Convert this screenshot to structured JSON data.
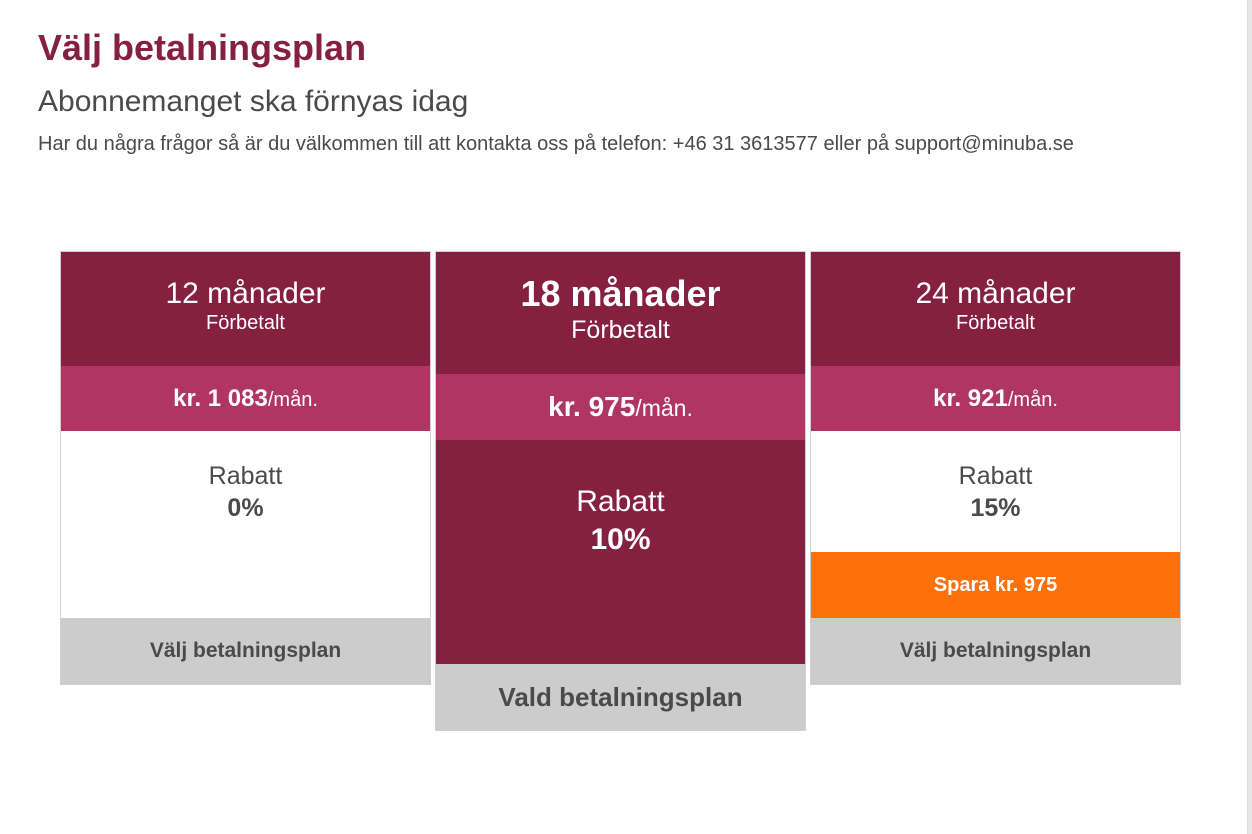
{
  "header": {
    "title": "Välj betalningsplan",
    "subtitle": "Abonnemanget ska förnyas idag",
    "contact_prefix": "Har du några frågor så är du välkommen till att kontakta oss på telefon: +46 31 3613577 eller på ",
    "contact_email": "support@minuba.se"
  },
  "plans": [
    {
      "months": "12 månader",
      "prepaid": "Förbetalt",
      "price": "kr. 1 083",
      "price_unit": "/mån.",
      "discount_label": "Rabatt",
      "discount_value": "0%",
      "button": "Välj betalningsplan",
      "selected": false
    },
    {
      "months": "18 månader",
      "prepaid": "Förbetalt",
      "price": "kr. 975",
      "price_unit": "/mån.",
      "discount_label": "Rabatt",
      "discount_value": "10%",
      "button": "Vald betalningsplan",
      "selected": true
    },
    {
      "months": "24 månader",
      "prepaid": "Förbetalt",
      "price": "kr. 921",
      "price_unit": "/mån.",
      "discount_label": "Rabatt",
      "discount_value": "15%",
      "savings": "Spara kr. 975",
      "button": "Välj betalningsplan",
      "selected": false
    }
  ],
  "colors": {
    "brand": "#862040",
    "price_band": "#af3563",
    "savings": "#fe700a",
    "button": "#cccccc",
    "text": "#4a4a4a"
  }
}
